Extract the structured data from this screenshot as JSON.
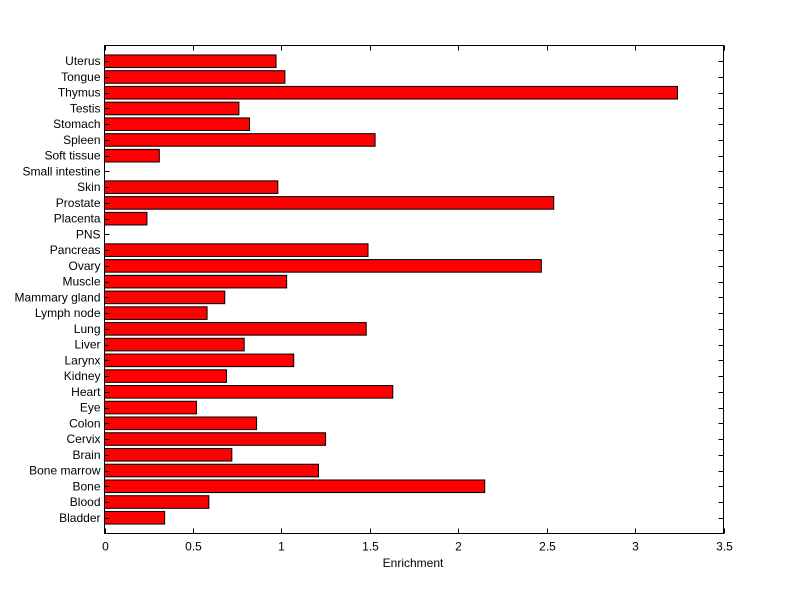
{
  "chart_data": {
    "type": "bar",
    "orientation": "horizontal",
    "title": "",
    "xlabel": "Enrichment",
    "ylabel": "",
    "xlim": [
      0,
      3.5
    ],
    "xticks": [
      0,
      0.5,
      1,
      1.5,
      2,
      2.5,
      3,
      3.5
    ],
    "xtick_labels": [
      "0",
      "0.5",
      "1",
      "1.5",
      "2",
      "2.5",
      "3",
      "3.5"
    ],
    "grid": false,
    "bar_color": "#ff0000",
    "categories": [
      "Bladder",
      "Blood",
      "Bone",
      "Bone marrow",
      "Brain",
      "Cervix",
      "Colon",
      "Eye",
      "Heart",
      "Kidney",
      "Larynx",
      "Liver",
      "Lung",
      "Lymph node",
      "Mammary gland",
      "Muscle",
      "Ovary",
      "Pancreas",
      "PNS",
      "Placenta",
      "Prostate",
      "Skin",
      "Small intestine",
      "Soft tissue",
      "Spleen",
      "Stomach",
      "Testis",
      "Thymus",
      "Tongue",
      "Uterus"
    ],
    "values": [
      0.34,
      0.59,
      2.15,
      1.21,
      0.72,
      1.25,
      0.86,
      0.52,
      1.63,
      0.69,
      1.07,
      0.79,
      1.48,
      0.58,
      0.68,
      1.03,
      2.47,
      1.49,
      0,
      0.24,
      2.54,
      0.98,
      0,
      0.31,
      1.53,
      0.82,
      0.76,
      3.24,
      1.02,
      0.97
    ]
  }
}
